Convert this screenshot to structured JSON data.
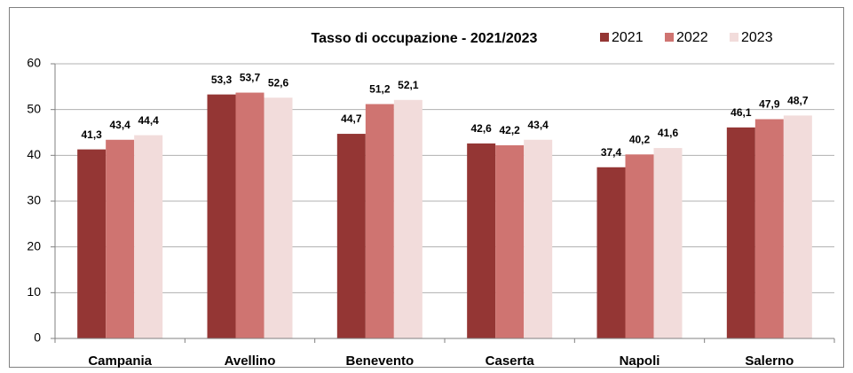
{
  "chart_data": {
    "type": "bar",
    "title": "Tasso di occupazione - 2021/2023",
    "categories": [
      "Campania",
      "Avellino",
      "Benevento",
      "Caserta",
      "Napoli",
      "Salerno"
    ],
    "series": [
      {
        "name": "2021",
        "color": "#943634",
        "values": [
          41.3,
          53.3,
          44.7,
          42.6,
          37.4,
          46.1
        ],
        "value_labels": [
          "41,3",
          "53,3",
          "44,7",
          "42,6",
          "37,4",
          "46,1"
        ]
      },
      {
        "name": "2022",
        "color": "#cf7471",
        "values": [
          43.4,
          53.7,
          51.2,
          42.2,
          40.2,
          47.9
        ],
        "value_labels": [
          "43,4",
          "53,7",
          "51,2",
          "42,2",
          "40,2",
          "47,9"
        ]
      },
      {
        "name": "2023",
        "color": "#f2dcdb",
        "values": [
          44.4,
          52.6,
          52.1,
          43.4,
          41.6,
          48.7
        ],
        "value_labels": [
          "44,4",
          "52,6",
          "52,1",
          "43,4",
          "41,6",
          "48,7"
        ]
      }
    ],
    "ylim": [
      0,
      60
    ],
    "yticks": [
      0,
      10,
      20,
      30,
      40,
      50,
      60
    ],
    "grid": true,
    "legend": "top-right"
  }
}
